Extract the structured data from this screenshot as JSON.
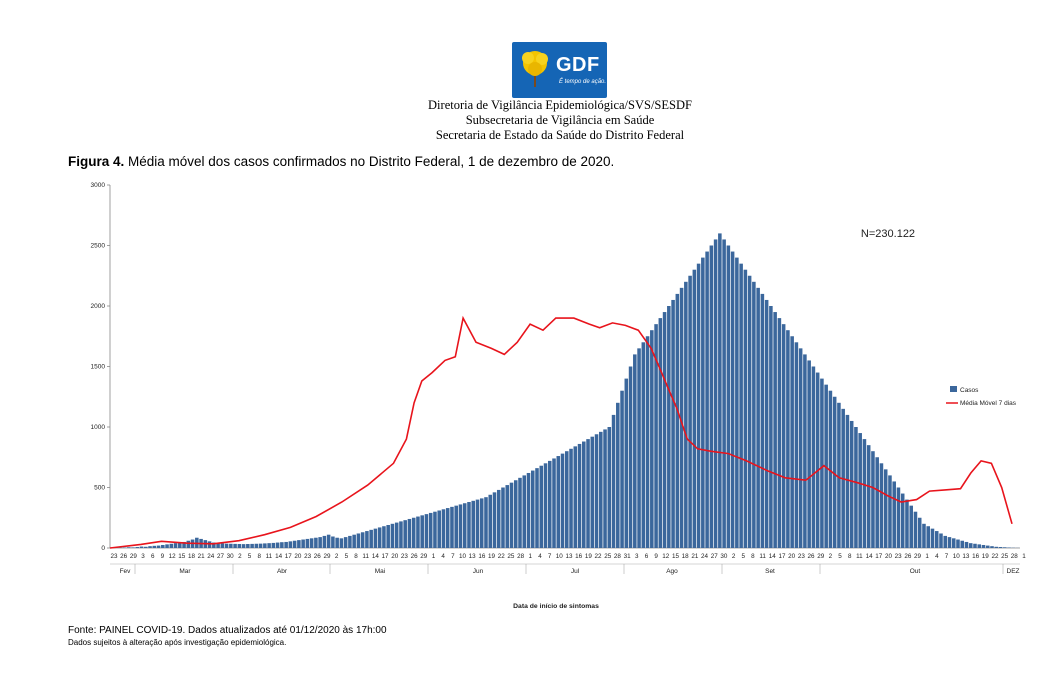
{
  "header": {
    "logo_text": "GDF",
    "logo_tagline": "É tempo de ação.",
    "line1": "Diretoria de Vigilância Epidemiológica/SVS/SESDF",
    "line2": "Subsecretaria de Vigilância em Saúde",
    "line3": "Secretaria de Estado da Saúde do Distrito Federal"
  },
  "figure": {
    "label": "Figura 4.",
    "caption": " Média móvel dos casos confirmados no Distrito Federal, 1 de dezembro de 2020."
  },
  "footer": {
    "source": "Fonte: PAINEL COVID-19. Dados atualizados até 01/12/2020 às 17h:00",
    "note": "Dados sujeitos à alteração após investigação epidemiológica."
  },
  "chart_data": {
    "type": "bar",
    "xlabel": "Data de início de sintomas",
    "ylabel": "",
    "ylim": [
      0,
      3000
    ],
    "yticks": [
      0,
      500,
      1000,
      1500,
      2000,
      2500,
      3000
    ],
    "annotation": "N=230.122",
    "legend_position": "right",
    "grid": false,
    "colors": {
      "bars": "#3b679c",
      "moving_average": "#e8141c"
    },
    "months": [
      "Fev",
      "Mar",
      "Abr",
      "Mai",
      "Jun",
      "Jul",
      "Ago",
      "Set",
      "Out",
      "DEZ"
    ],
    "x_tick_labels": [
      "23",
      "26",
      "29",
      "3",
      "6",
      "9",
      "12",
      "15",
      "18",
      "21",
      "24",
      "27",
      "30",
      "2",
      "5",
      "8",
      "11",
      "14",
      "17",
      "20",
      "23",
      "26",
      "29",
      "2",
      "5",
      "8",
      "11",
      "14",
      "17",
      "20",
      "23",
      "26",
      "29",
      "1",
      "4",
      "7",
      "10",
      "13",
      "16",
      "19",
      "22",
      "25",
      "28",
      "1",
      "4",
      "7",
      "10",
      "13",
      "16",
      "19",
      "22",
      "25",
      "28",
      "31",
      "3",
      "6",
      "9",
      "12",
      "15",
      "18",
      "21",
      "24",
      "27",
      "30",
      "2",
      "5",
      "8",
      "11",
      "14",
      "17",
      "20",
      "23",
      "26",
      "29",
      "2",
      "5",
      "8",
      "11",
      "14",
      "17",
      "20",
      "23",
      "26",
      "29",
      "1",
      "4",
      "7",
      "10",
      "13",
      "16",
      "19",
      "22",
      "25",
      "28",
      "1"
    ],
    "date_range": [
      "2020-02-23",
      "2020-12-01"
    ],
    "series": [
      {
        "name": "Casos",
        "values": [
          2,
          3,
          2,
          4,
          6,
          5,
          8,
          12,
          10,
          15,
          18,
          20,
          25,
          30,
          35,
          40,
          45,
          50,
          60,
          70,
          85,
          75,
          65,
          55,
          45,
          40,
          38,
          36,
          35,
          34,
          33,
          32,
          33,
          34,
          35,
          36,
          38,
          40,
          42,
          45,
          48,
          50,
          55,
          60,
          65,
          70,
          75,
          80,
          85,
          90,
          100,
          110,
          95,
          85,
          80,
          90,
          100,
          110,
          120,
          130,
          140,
          150,
          160,
          170,
          180,
          190,
          200,
          210,
          220,
          230,
          240,
          250,
          260,
          270,
          280,
          290,
          300,
          310,
          320,
          330,
          340,
          350,
          360,
          370,
          380,
          390,
          400,
          410,
          420,
          440,
          460,
          480,
          500,
          520,
          540,
          560,
          580,
          600,
          620,
          640,
          660,
          680,
          700,
          720,
          740,
          760,
          780,
          800,
          820,
          840,
          860,
          880,
          900,
          920,
          940,
          960,
          980,
          1000,
          1100,
          1200,
          1300,
          1400,
          1500,
          1600,
          1650,
          1700,
          1750,
          1800,
          1850,
          1900,
          1950,
          2000,
          2050,
          2100,
          2150,
          2200,
          2250,
          2300,
          2350,
          2400,
          2450,
          2500,
          2550,
          2600,
          2550,
          2500,
          2450,
          2400,
          2350,
          2300,
          2250,
          2200,
          2150,
          2100,
          2050,
          2000,
          1950,
          1900,
          1850,
          1800,
          1750,
          1700,
          1650,
          1600,
          1550,
          1500,
          1450,
          1400,
          1350,
          1300,
          1250,
          1200,
          1150,
          1100,
          1050,
          1000,
          950,
          900,
          850,
          800,
          750,
          700,
          650,
          600,
          550,
          500,
          450,
          400,
          350,
          300,
          250,
          200,
          180,
          160,
          140,
          120,
          100,
          90,
          80,
          70,
          60,
          50,
          40,
          35,
          30,
          25,
          20,
          15,
          10,
          8,
          6,
          4,
          2,
          1
        ],
        "note": "approximate reading"
      },
      {
        "name": "Média Móvel 7 dias",
        "points": [
          [
            0,
            0
          ],
          [
            5,
            12
          ],
          [
            12,
            30
          ],
          [
            20,
            55
          ],
          [
            30,
            40
          ],
          [
            40,
            35
          ],
          [
            50,
            60
          ],
          [
            60,
            110
          ],
          [
            70,
            170
          ],
          [
            80,
            260
          ],
          [
            90,
            380
          ],
          [
            100,
            520
          ],
          [
            110,
            700
          ],
          [
            115,
            900
          ],
          [
            118,
            1200
          ],
          [
            121,
            1380
          ],
          [
            125,
            1450
          ],
          [
            130,
            1550
          ],
          [
            134,
            1580
          ],
          [
            137,
            1900
          ],
          [
            142,
            1700
          ],
          [
            148,
            1650
          ],
          [
            153,
            1600
          ],
          [
            158,
            1700
          ],
          [
            163,
            1850
          ],
          [
            168,
            1800
          ],
          [
            173,
            1900
          ],
          [
            180,
            1900
          ],
          [
            186,
            1850
          ],
          [
            190,
            1820
          ],
          [
            195,
            1860
          ],
          [
            200,
            1840
          ],
          [
            205,
            1800
          ],
          [
            210,
            1650
          ],
          [
            215,
            1400
          ],
          [
            220,
            1150
          ],
          [
            224,
            900
          ],
          [
            228,
            820
          ],
          [
            233,
            800
          ],
          [
            240,
            780
          ],
          [
            247,
            720
          ],
          [
            255,
            640
          ],
          [
            262,
            580
          ],
          [
            270,
            560
          ],
          [
            277,
            680
          ],
          [
            283,
            580
          ],
          [
            290,
            540
          ],
          [
            296,
            500
          ],
          [
            302,
            430
          ],
          [
            307,
            380
          ],
          [
            313,
            400
          ],
          [
            318,
            470
          ],
          [
            324,
            480
          ],
          [
            330,
            490
          ],
          [
            334,
            620
          ],
          [
            338,
            720
          ],
          [
            342,
            700
          ],
          [
            346,
            500
          ],
          [
            350,
            200
          ]
        ]
      }
    ]
  }
}
